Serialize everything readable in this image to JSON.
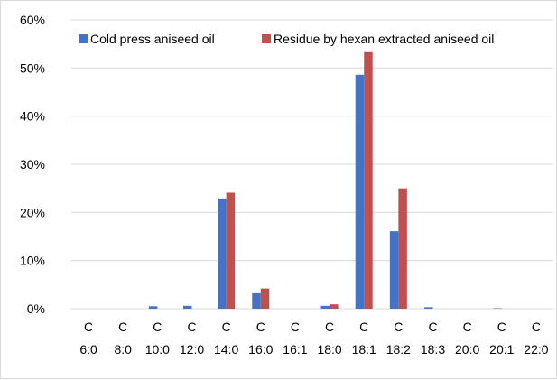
{
  "chart_data": {
    "type": "bar",
    "categories": [
      [
        "C",
        "6:0"
      ],
      [
        "C",
        "8:0"
      ],
      [
        "C",
        "10:0"
      ],
      [
        "C",
        "12:0"
      ],
      [
        "C",
        "14:0"
      ],
      [
        "C",
        "16:0"
      ],
      [
        "C",
        "16:1"
      ],
      [
        "C",
        "18:0"
      ],
      [
        "C",
        "18:1"
      ],
      [
        "C",
        "18:2"
      ],
      [
        "C",
        "18:3"
      ],
      [
        "C",
        "20:0"
      ],
      [
        "C",
        "20:1"
      ],
      [
        "C",
        "22:0"
      ]
    ],
    "series": [
      {
        "name": "Cold press aniseed oil",
        "color": "#4472C4",
        "values": [
          0,
          0,
          0.5,
          0.6,
          22.9,
          3.2,
          0,
          0.6,
          48.6,
          16.1,
          0.3,
          0,
          0.1,
          0
        ]
      },
      {
        "name": "Residue by hexan extracted aniseed oil",
        "color": "#C0504D",
        "values": [
          0,
          0,
          0,
          0,
          24.1,
          4.2,
          0,
          0.9,
          53.3,
          25.0,
          0,
          0,
          0,
          0
        ]
      }
    ],
    "ylim": [
      0,
      60
    ],
    "yticks": [
      "0%",
      "10%",
      "20%",
      "30%",
      "40%",
      "50%",
      "60%"
    ],
    "ytick_values": [
      0,
      10,
      20,
      30,
      40,
      50,
      60
    ],
    "grid": true,
    "legend": "top",
    "title": "",
    "xlabel": "",
    "ylabel": ""
  }
}
